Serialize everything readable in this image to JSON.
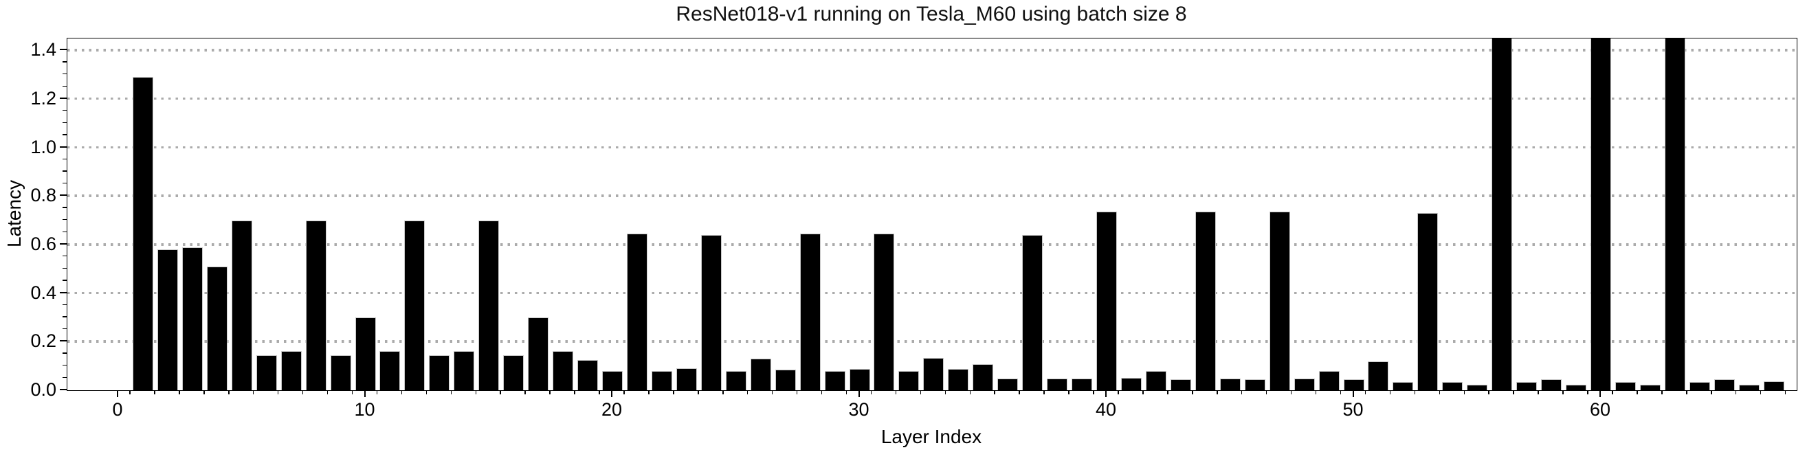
{
  "chart_data": {
    "type": "bar",
    "title": "ResNet018-v1 running on Tesla_M60 using batch size 8",
    "xlabel": "Layer Index",
    "ylabel": "Latency",
    "x": [
      1,
      2,
      3,
      4,
      5,
      6,
      7,
      8,
      9,
      10,
      11,
      12,
      13,
      14,
      15,
      16,
      17,
      18,
      19,
      20,
      21,
      22,
      23,
      24,
      25,
      26,
      27,
      28,
      29,
      30,
      31,
      32,
      33,
      34,
      35,
      36,
      37,
      38,
      39,
      40,
      41,
      42,
      43,
      44,
      45,
      46,
      47,
      48,
      49,
      50,
      51,
      52,
      53,
      54,
      55,
      56,
      57,
      58,
      59,
      60,
      61,
      62,
      63,
      64,
      65,
      66,
      67
    ],
    "values": [
      1.29,
      0.58,
      0.59,
      0.51,
      0.7,
      0.145,
      0.16,
      0.7,
      0.145,
      0.3,
      0.16,
      0.7,
      0.145,
      0.16,
      0.7,
      0.145,
      0.3,
      0.16,
      0.125,
      0.078,
      0.645,
      0.078,
      0.092,
      0.64,
      0.078,
      0.13,
      0.086,
      0.645,
      0.078,
      0.089,
      0.645,
      0.078,
      0.134,
      0.087,
      0.108,
      0.049,
      0.64,
      0.049,
      0.047,
      0.736,
      0.05,
      0.08,
      0.045,
      0.736,
      0.047,
      0.045,
      0.737,
      0.047,
      0.078,
      0.045,
      0.12,
      0.033,
      0.73,
      0.033,
      0.023,
      1.45,
      0.033,
      0.045,
      0.023,
      1.45,
      0.033,
      0.023,
      1.45,
      0.033,
      0.045,
      0.023,
      0.037
    ],
    "clipped_layers": [
      56,
      60,
      63
    ],
    "clipped_note": "bars at layers 56, 60 and 63 reach the top frame of the plot (values exceed the visible axis, clipped at ~1.45)",
    "xticks": [
      0,
      10,
      20,
      30,
      40,
      50,
      60
    ],
    "yticks": [
      "0.0",
      "0.2",
      "0.4",
      "0.6",
      "0.8",
      "1.0",
      "1.2",
      "1.4"
    ],
    "ylim": [
      0,
      1.449
    ],
    "xlim": [
      -2.05,
      67.9
    ],
    "grid": "horizontal dotted gridlines every 0.2",
    "legend": null,
    "bar_color": "#000000",
    "bar_edge_color": "#c9c9c9",
    "grid_color": "#ababab",
    "text_color": "#000000",
    "background_color": "#ffffff"
  }
}
